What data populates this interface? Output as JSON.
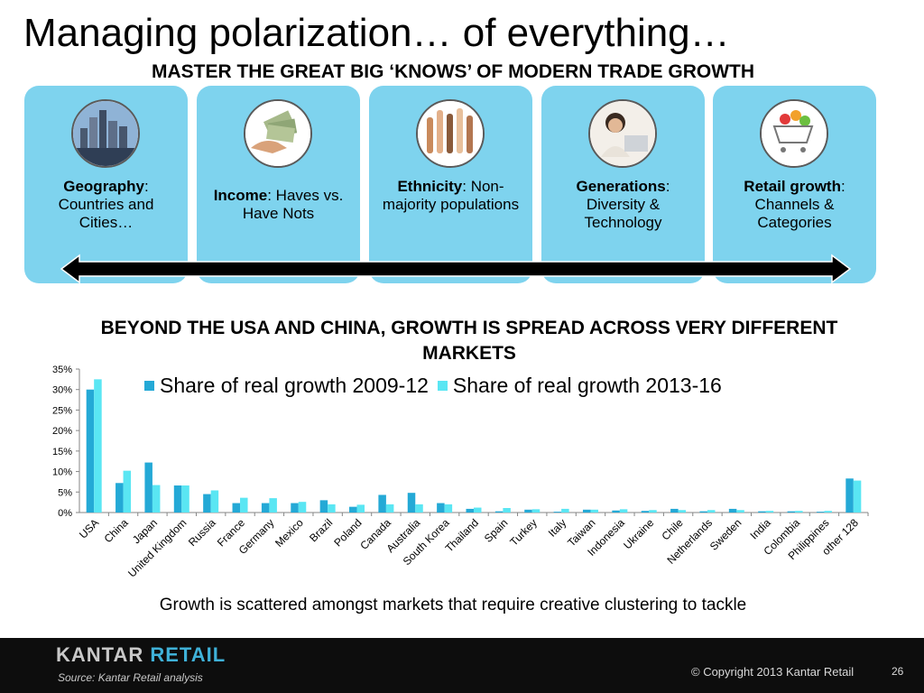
{
  "slide": {
    "title": "Managing polarization… of everything…",
    "subtitle": "MASTER THE GREAT BIG ‘KNOWS’ OF MODERN TRADE GROWTH",
    "cards": [
      {
        "bold": "Geography",
        "rest": ": Countries and Cities…",
        "icon": "city-skyline-icon"
      },
      {
        "bold": "Income",
        "rest": ":  Haves vs. Have Nots",
        "icon": "money-hand-icon"
      },
      {
        "bold": "Ethnicity",
        "rest": ":  Non-majority populations",
        "icon": "raised-hands-icon"
      },
      {
        "bold": "Generations",
        "rest": ": Diversity & Technology",
        "icon": "person-laptop-icon"
      },
      {
        "bold": "Retail growth",
        "rest": ": Channels & Categories",
        "icon": "shopping-cart-icon"
      }
    ],
    "chart_heading": "BEYOND THE USA AND CHINA, GROWTH IS SPREAD ACROSS VERY DIFFERENT MARKETS",
    "footnote": "Growth is scattered amongst markets that require creative clustering to tackle",
    "logo_primary": "KANTAR",
    "logo_secondary": "RETAIL",
    "source": "Source: Kantar Retail analysis",
    "copyright": "© Copyright 2013 Kantar Retail",
    "page_number": "26"
  },
  "chart_data": {
    "type": "bar",
    "categories": [
      "USA",
      "China",
      "Japan",
      "United Kingdom",
      "Russia",
      "France",
      "Germany",
      "Mexico",
      "Brazil",
      "Poland",
      "Canada",
      "Australia",
      "South Korea",
      "Thailand",
      "Spain",
      "Turkey",
      "Italy",
      "Taiwan",
      "Indonesia",
      "Ukraine",
      "Chile",
      "Netherlands",
      "Sweden",
      "India",
      "Colombia",
      "Philippines",
      "other  128"
    ],
    "series": [
      {
        "name": "Share of real growth 2009-12",
        "color": "#24a9d6",
        "values": [
          30.0,
          7.2,
          12.2,
          6.6,
          4.5,
          2.3,
          2.3,
          2.3,
          3.0,
          1.4,
          4.3,
          4.8,
          2.3,
          0.9,
          0.3,
          0.7,
          0.2,
          0.7,
          0.5,
          0.4,
          0.9,
          0.3,
          0.9,
          0.3,
          0.3,
          0.2,
          8.3
        ]
      },
      {
        "name": "Share of real growth 2013-16",
        "color": "#5ae6f3",
        "values": [
          32.5,
          10.2,
          6.7,
          6.6,
          5.4,
          3.6,
          3.5,
          2.6,
          2.0,
          1.9,
          2.0,
          2.0,
          2.0,
          1.2,
          1.1,
          0.8,
          0.9,
          0.7,
          0.8,
          0.6,
          0.6,
          0.6,
          0.6,
          0.4,
          0.4,
          0.4,
          7.8
        ]
      }
    ],
    "yticks": [
      "0%",
      "5%",
      "10%",
      "15%",
      "20%",
      "25%",
      "30%",
      "35%"
    ],
    "ylim": [
      0,
      35
    ]
  }
}
